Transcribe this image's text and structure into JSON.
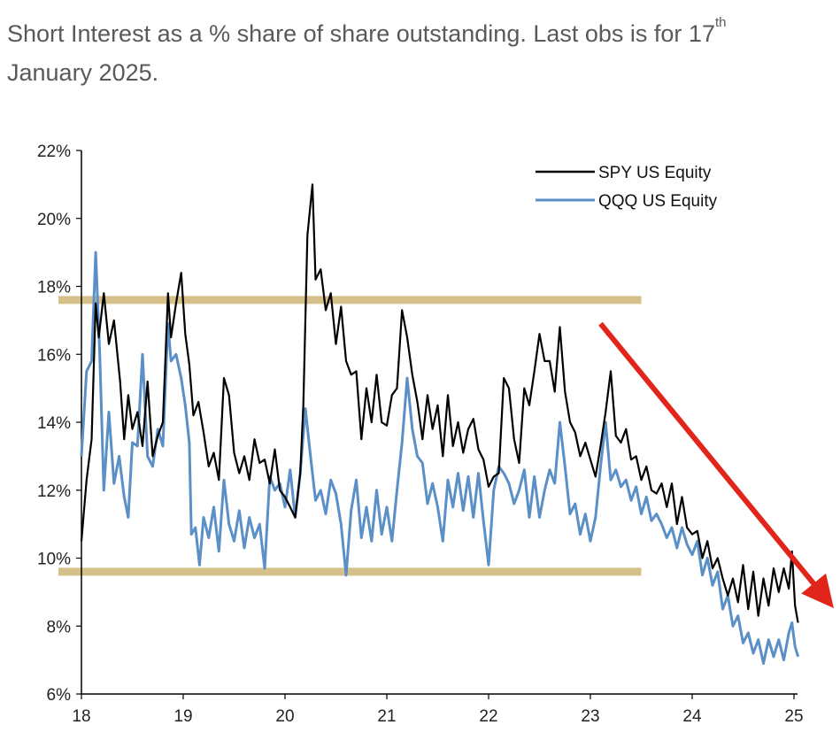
{
  "chart_data": {
    "type": "line",
    "title": "Short Interest as a % share of share outstanding. Last obs is for 17",
    "title_superscript": "th",
    "title_line2": "January 2025.",
    "xlabel": "",
    "ylabel": "",
    "xlim": [
      18,
      25.05
    ],
    "ylim": [
      6,
      22
    ],
    "x_ticks": [
      "18",
      "19",
      "20",
      "21",
      "22",
      "23",
      "24",
      "25"
    ],
    "y_ticks": [
      "22%",
      "20%",
      "18%",
      "16%",
      "14%",
      "12%",
      "10%",
      "8%",
      "6%"
    ],
    "series": [
      {
        "name": "SPY US Equity",
        "color": "#000000",
        "points": [
          [
            18.0,
            10.5
          ],
          [
            18.05,
            12.3
          ],
          [
            18.1,
            13.5
          ],
          [
            18.14,
            17.5
          ],
          [
            18.17,
            16.5
          ],
          [
            18.22,
            17.8
          ],
          [
            18.27,
            16.3
          ],
          [
            18.32,
            17.0
          ],
          [
            18.38,
            15.2
          ],
          [
            18.42,
            13.5
          ],
          [
            18.46,
            14.8
          ],
          [
            18.5,
            13.8
          ],
          [
            18.55,
            14.3
          ],
          [
            18.6,
            13.3
          ],
          [
            18.65,
            15.2
          ],
          [
            18.7,
            13.0
          ],
          [
            18.75,
            13.6
          ],
          [
            18.8,
            14.0
          ],
          [
            18.85,
            17.8
          ],
          [
            18.88,
            16.5
          ],
          [
            18.93,
            17.5
          ],
          [
            18.98,
            18.4
          ],
          [
            19.02,
            16.6
          ],
          [
            19.06,
            15.7
          ],
          [
            19.1,
            14.2
          ],
          [
            19.15,
            14.6
          ],
          [
            19.2,
            13.7
          ],
          [
            19.25,
            12.7
          ],
          [
            19.3,
            13.1
          ],
          [
            19.35,
            12.3
          ],
          [
            19.4,
            15.3
          ],
          [
            19.45,
            14.8
          ],
          [
            19.5,
            13.1
          ],
          [
            19.55,
            12.5
          ],
          [
            19.6,
            13.0
          ],
          [
            19.65,
            12.3
          ],
          [
            19.7,
            13.5
          ],
          [
            19.75,
            12.8
          ],
          [
            19.8,
            12.9
          ],
          [
            19.85,
            12.2
          ],
          [
            19.9,
            13.2
          ],
          [
            19.95,
            12.0
          ],
          [
            20.0,
            11.8
          ],
          [
            20.05,
            11.5
          ],
          [
            20.1,
            11.2
          ],
          [
            20.15,
            12.5
          ],
          [
            20.18,
            14.5
          ],
          [
            20.22,
            19.5
          ],
          [
            20.27,
            21.0
          ],
          [
            20.3,
            18.2
          ],
          [
            20.35,
            18.5
          ],
          [
            20.4,
            17.3
          ],
          [
            20.45,
            17.8
          ],
          [
            20.5,
            16.3
          ],
          [
            20.55,
            17.4
          ],
          [
            20.6,
            15.8
          ],
          [
            20.65,
            15.4
          ],
          [
            20.7,
            15.5
          ],
          [
            20.75,
            13.5
          ],
          [
            20.8,
            15.0
          ],
          [
            20.85,
            14.0
          ],
          [
            20.9,
            15.4
          ],
          [
            20.95,
            14.0
          ],
          [
            21.0,
            13.9
          ],
          [
            21.05,
            14.8
          ],
          [
            21.1,
            15.0
          ],
          [
            21.15,
            17.3
          ],
          [
            21.2,
            16.5
          ],
          [
            21.25,
            15.4
          ],
          [
            21.3,
            14.6
          ],
          [
            21.35,
            13.5
          ],
          [
            21.4,
            14.8
          ],
          [
            21.45,
            13.8
          ],
          [
            21.5,
            14.5
          ],
          [
            21.55,
            13.0
          ],
          [
            21.6,
            14.8
          ],
          [
            21.65,
            13.3
          ],
          [
            21.7,
            14.0
          ],
          [
            21.75,
            13.1
          ],
          [
            21.8,
            13.8
          ],
          [
            21.85,
            14.1
          ],
          [
            21.9,
            13.2
          ],
          [
            21.95,
            12.9
          ],
          [
            22.0,
            12.1
          ],
          [
            22.05,
            12.4
          ],
          [
            22.1,
            12.5
          ],
          [
            22.15,
            15.3
          ],
          [
            22.2,
            15.0
          ],
          [
            22.25,
            13.5
          ],
          [
            22.3,
            12.8
          ],
          [
            22.35,
            15.0
          ],
          [
            22.4,
            14.5
          ],
          [
            22.45,
            15.5
          ],
          [
            22.5,
            16.6
          ],
          [
            22.55,
            15.8
          ],
          [
            22.6,
            15.8
          ],
          [
            22.65,
            14.9
          ],
          [
            22.7,
            16.8
          ],
          [
            22.75,
            14.9
          ],
          [
            22.8,
            14.0
          ],
          [
            22.85,
            13.7
          ],
          [
            22.9,
            13.0
          ],
          [
            22.95,
            13.4
          ],
          [
            23.0,
            12.9
          ],
          [
            23.05,
            12.4
          ],
          [
            23.1,
            13.3
          ],
          [
            23.15,
            14.3
          ],
          [
            23.2,
            15.5
          ],
          [
            23.25,
            13.6
          ],
          [
            23.3,
            13.4
          ],
          [
            23.35,
            13.8
          ],
          [
            23.4,
            12.9
          ],
          [
            23.45,
            13.0
          ],
          [
            23.5,
            12.3
          ],
          [
            23.55,
            12.7
          ],
          [
            23.6,
            12.0
          ],
          [
            23.65,
            11.9
          ],
          [
            23.7,
            12.2
          ],
          [
            23.75,
            11.5
          ],
          [
            23.8,
            12.2
          ],
          [
            23.85,
            11.0
          ],
          [
            23.9,
            11.8
          ],
          [
            23.95,
            10.9
          ],
          [
            24.0,
            10.7
          ],
          [
            24.05,
            10.8
          ],
          [
            24.1,
            10.0
          ],
          [
            24.15,
            10.5
          ],
          [
            24.2,
            9.7
          ],
          [
            24.25,
            10.0
          ],
          [
            24.3,
            9.4
          ],
          [
            24.35,
            8.9
          ],
          [
            24.4,
            9.4
          ],
          [
            24.45,
            8.7
          ],
          [
            24.5,
            9.8
          ],
          [
            24.55,
            8.5
          ],
          [
            24.6,
            9.6
          ],
          [
            24.65,
            8.3
          ],
          [
            24.7,
            9.4
          ],
          [
            24.75,
            8.6
          ],
          [
            24.8,
            9.7
          ],
          [
            24.85,
            9.0
          ],
          [
            24.9,
            9.7
          ],
          [
            24.95,
            9.1
          ],
          [
            24.98,
            10.2
          ],
          [
            25.01,
            8.6
          ],
          [
            25.04,
            8.1
          ]
        ]
      },
      {
        "name": "QQQ US Equity",
        "color": "#5b8fc7",
        "points": [
          [
            18.0,
            13.0
          ],
          [
            18.05,
            15.5
          ],
          [
            18.1,
            15.8
          ],
          [
            18.14,
            19.0
          ],
          [
            18.18,
            16.0
          ],
          [
            18.22,
            12.0
          ],
          [
            18.27,
            14.3
          ],
          [
            18.32,
            12.2
          ],
          [
            18.37,
            13.0
          ],
          [
            18.42,
            11.8
          ],
          [
            18.46,
            11.2
          ],
          [
            18.5,
            13.4
          ],
          [
            18.55,
            13.3
          ],
          [
            18.6,
            16.0
          ],
          [
            18.65,
            13.0
          ],
          [
            18.7,
            12.7
          ],
          [
            18.75,
            13.8
          ],
          [
            18.8,
            13.3
          ],
          [
            18.85,
            16.9
          ],
          [
            18.88,
            15.8
          ],
          [
            18.93,
            16.0
          ],
          [
            18.98,
            15.3
          ],
          [
            19.02,
            14.5
          ],
          [
            19.06,
            13.4
          ],
          [
            19.08,
            10.7
          ],
          [
            19.12,
            10.9
          ],
          [
            19.16,
            9.8
          ],
          [
            19.2,
            11.2
          ],
          [
            19.25,
            10.6
          ],
          [
            19.3,
            11.5
          ],
          [
            19.35,
            10.2
          ],
          [
            19.4,
            12.3
          ],
          [
            19.45,
            11.0
          ],
          [
            19.5,
            10.5
          ],
          [
            19.55,
            11.4
          ],
          [
            19.6,
            10.3
          ],
          [
            19.65,
            11.2
          ],
          [
            19.7,
            10.6
          ],
          [
            19.75,
            11.0
          ],
          [
            19.8,
            9.7
          ],
          [
            19.85,
            12.4
          ],
          [
            19.9,
            12.0
          ],
          [
            19.95,
            12.2
          ],
          [
            20.0,
            11.5
          ],
          [
            20.05,
            12.6
          ],
          [
            20.1,
            11.2
          ],
          [
            20.15,
            12.5
          ],
          [
            20.2,
            14.4
          ],
          [
            20.25,
            13.0
          ],
          [
            20.3,
            11.7
          ],
          [
            20.35,
            12.0
          ],
          [
            20.4,
            11.3
          ],
          [
            20.45,
            12.3
          ],
          [
            20.5,
            11.9
          ],
          [
            20.55,
            11.0
          ],
          [
            20.6,
            9.5
          ],
          [
            20.65,
            11.4
          ],
          [
            20.7,
            12.3
          ],
          [
            20.75,
            10.6
          ],
          [
            20.8,
            11.5
          ],
          [
            20.85,
            10.5
          ],
          [
            20.9,
            12.0
          ],
          [
            20.95,
            10.7
          ],
          [
            21.0,
            11.5
          ],
          [
            21.05,
            10.5
          ],
          [
            21.1,
            12.0
          ],
          [
            21.15,
            13.4
          ],
          [
            21.2,
            15.3
          ],
          [
            21.25,
            13.8
          ],
          [
            21.3,
            13.0
          ],
          [
            21.35,
            12.8
          ],
          [
            21.4,
            11.6
          ],
          [
            21.45,
            12.2
          ],
          [
            21.5,
            11.5
          ],
          [
            21.55,
            10.5
          ],
          [
            21.6,
            12.3
          ],
          [
            21.65,
            11.5
          ],
          [
            21.7,
            12.5
          ],
          [
            21.75,
            11.4
          ],
          [
            21.8,
            12.4
          ],
          [
            21.85,
            11.2
          ],
          [
            21.9,
            12.5
          ],
          [
            21.95,
            11.1
          ],
          [
            22.0,
            9.8
          ],
          [
            22.05,
            12.0
          ],
          [
            22.1,
            12.7
          ],
          [
            22.15,
            12.5
          ],
          [
            22.2,
            12.2
          ],
          [
            22.25,
            11.6
          ],
          [
            22.3,
            12.0
          ],
          [
            22.35,
            12.6
          ],
          [
            22.4,
            11.2
          ],
          [
            22.45,
            12.4
          ],
          [
            22.5,
            11.2
          ],
          [
            22.55,
            12.0
          ],
          [
            22.6,
            12.6
          ],
          [
            22.65,
            12.2
          ],
          [
            22.7,
            14.0
          ],
          [
            22.75,
            12.7
          ],
          [
            22.8,
            11.3
          ],
          [
            22.85,
            11.6
          ],
          [
            22.9,
            10.7
          ],
          [
            22.95,
            11.3
          ],
          [
            23.0,
            10.5
          ],
          [
            23.05,
            11.2
          ],
          [
            23.1,
            12.7
          ],
          [
            23.15,
            14.0
          ],
          [
            23.2,
            12.3
          ],
          [
            23.25,
            12.6
          ],
          [
            23.3,
            12.1
          ],
          [
            23.35,
            12.3
          ],
          [
            23.4,
            11.7
          ],
          [
            23.45,
            12.1
          ],
          [
            23.5,
            11.3
          ],
          [
            23.55,
            11.8
          ],
          [
            23.6,
            11.1
          ],
          [
            23.65,
            11.3
          ],
          [
            23.7,
            11.0
          ],
          [
            23.75,
            10.6
          ],
          [
            23.8,
            10.9
          ],
          [
            23.85,
            10.3
          ],
          [
            23.9,
            10.9
          ],
          [
            23.95,
            10.4
          ],
          [
            24.0,
            10.1
          ],
          [
            24.05,
            10.5
          ],
          [
            24.1,
            9.5
          ],
          [
            24.15,
            10.0
          ],
          [
            24.2,
            9.2
          ],
          [
            24.25,
            9.6
          ],
          [
            24.3,
            8.5
          ],
          [
            24.35,
            8.9
          ],
          [
            24.4,
            8.0
          ],
          [
            24.45,
            8.3
          ],
          [
            24.5,
            7.5
          ],
          [
            24.55,
            7.8
          ],
          [
            24.6,
            7.2
          ],
          [
            24.65,
            7.6
          ],
          [
            24.7,
            6.9
          ],
          [
            24.75,
            7.6
          ],
          [
            24.8,
            7.1
          ],
          [
            24.85,
            7.6
          ],
          [
            24.9,
            7.0
          ],
          [
            24.95,
            7.8
          ],
          [
            24.98,
            8.1
          ],
          [
            25.01,
            7.4
          ],
          [
            25.04,
            7.1
          ]
        ]
      }
    ],
    "annotations": [
      {
        "type": "horizontal_band",
        "y": 17.6,
        "x_range": [
          17.75,
          23.5
        ],
        "color": "#d5c08a"
      },
      {
        "type": "horizontal_band",
        "y": 9.6,
        "x_range": [
          17.75,
          23.5
        ],
        "color": "#d5c08a"
      },
      {
        "type": "arrow",
        "from": [
          23.1,
          16.9
        ],
        "to": [
          25.38,
          8.7
        ],
        "color": "#e1251b"
      }
    ],
    "legend_position": "top-right",
    "grid": false
  }
}
